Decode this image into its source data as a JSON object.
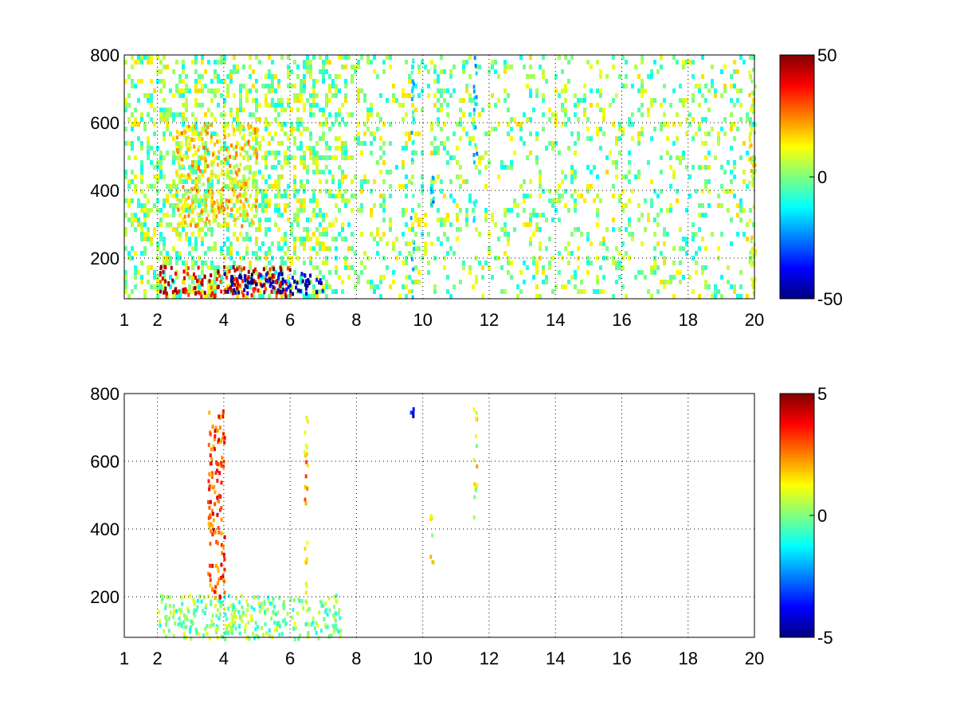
{
  "chart_data": [
    {
      "type": "heatmap",
      "title": "",
      "xlabel": "",
      "ylabel": "",
      "xlim": [
        1,
        20
      ],
      "ylim": [
        80,
        800
      ],
      "xticks": [
        1,
        2,
        4,
        6,
        8,
        10,
        12,
        14,
        16,
        18,
        20
      ],
      "xtick_labels": [
        "1",
        "2",
        "4",
        "6",
        "8",
        "10",
        "12",
        "14",
        "16",
        "18",
        "20"
      ],
      "yticks": [
        200,
        400,
        600,
        800
      ],
      "ytick_labels": [
        "200",
        "400",
        "600",
        "800"
      ],
      "grid": "dotted",
      "colormap": "jet",
      "colorbar": {
        "ticks": [
          50,
          0,
          -50
        ],
        "labels": [
          "50",
          "0",
          "-50"
        ],
        "range": [
          -50,
          50
        ]
      },
      "data_regions": [
        {
          "x": [
            2,
            6
          ],
          "y": [
            90,
            180
          ],
          "value": 40,
          "note": "warm band"
        },
        {
          "x": [
            4,
            7
          ],
          "y": [
            100,
            160
          ],
          "value": -45,
          "note": "cold band"
        },
        {
          "x": [
            2.5,
            5
          ],
          "y": [
            300,
            600
          ],
          "value": 15,
          "note": "yellow cloud"
        },
        {
          "x": [
            11.5,
            11.6
          ],
          "y": [
            300,
            800
          ],
          "value": -15,
          "note": "cyan vertical stripe"
        },
        {
          "x": [
            9.6,
            9.7
          ],
          "y": [
            80,
            800
          ],
          "value": -10,
          "note": "vertical stripe"
        },
        {
          "x": [
            10.2,
            10.3
          ],
          "y": [
            300,
            500
          ],
          "value": -20,
          "note": "vertical stripe"
        },
        {
          "x": [
            19.8,
            20
          ],
          "y": [
            80,
            800
          ],
          "value": 10,
          "note": "edge stripe"
        }
      ]
    },
    {
      "type": "heatmap",
      "title": "",
      "xlabel": "",
      "ylabel": "",
      "xlim": [
        1,
        20
      ],
      "ylim": [
        80,
        800
      ],
      "xticks": [
        1,
        2,
        4,
        6,
        8,
        10,
        12,
        14,
        16,
        18,
        20
      ],
      "xtick_labels": [
        "1",
        "2",
        "4",
        "6",
        "8",
        "10",
        "12",
        "14",
        "16",
        "18",
        "20"
      ],
      "yticks": [
        200,
        400,
        600,
        800
      ],
      "ytick_labels": [
        "200",
        "400",
        "600",
        "800"
      ],
      "grid": "dotted",
      "colormap": "jet",
      "colorbar": {
        "ticks": [
          5,
          0,
          -5
        ],
        "labels": [
          "5",
          "0",
          "-5"
        ],
        "range": [
          -5,
          5
        ]
      },
      "data_regions": [
        {
          "x": [
            2,
            7.5
          ],
          "y": [
            80,
            210
          ],
          "value": 0,
          "note": "mixed cluster"
        },
        {
          "x": [
            3.5,
            4
          ],
          "y": [
            200,
            760
          ],
          "value": 3,
          "note": "vertical streaks"
        },
        {
          "x": [
            11.5,
            11.6
          ],
          "y": [
            430,
            770
          ],
          "value": 1,
          "note": "vertical stripe"
        },
        {
          "x": [
            10.2,
            10.3
          ],
          "y": [
            300,
            460
          ],
          "value": 1,
          "note": "vertical stripe"
        },
        {
          "x": [
            9.6,
            9.7
          ],
          "y": [
            720,
            770
          ],
          "value": -4,
          "note": "blue dots"
        },
        {
          "x": [
            6.4,
            6.5
          ],
          "y": [
            200,
            740
          ],
          "value": 2,
          "note": "vertical stripe"
        }
      ]
    }
  ]
}
